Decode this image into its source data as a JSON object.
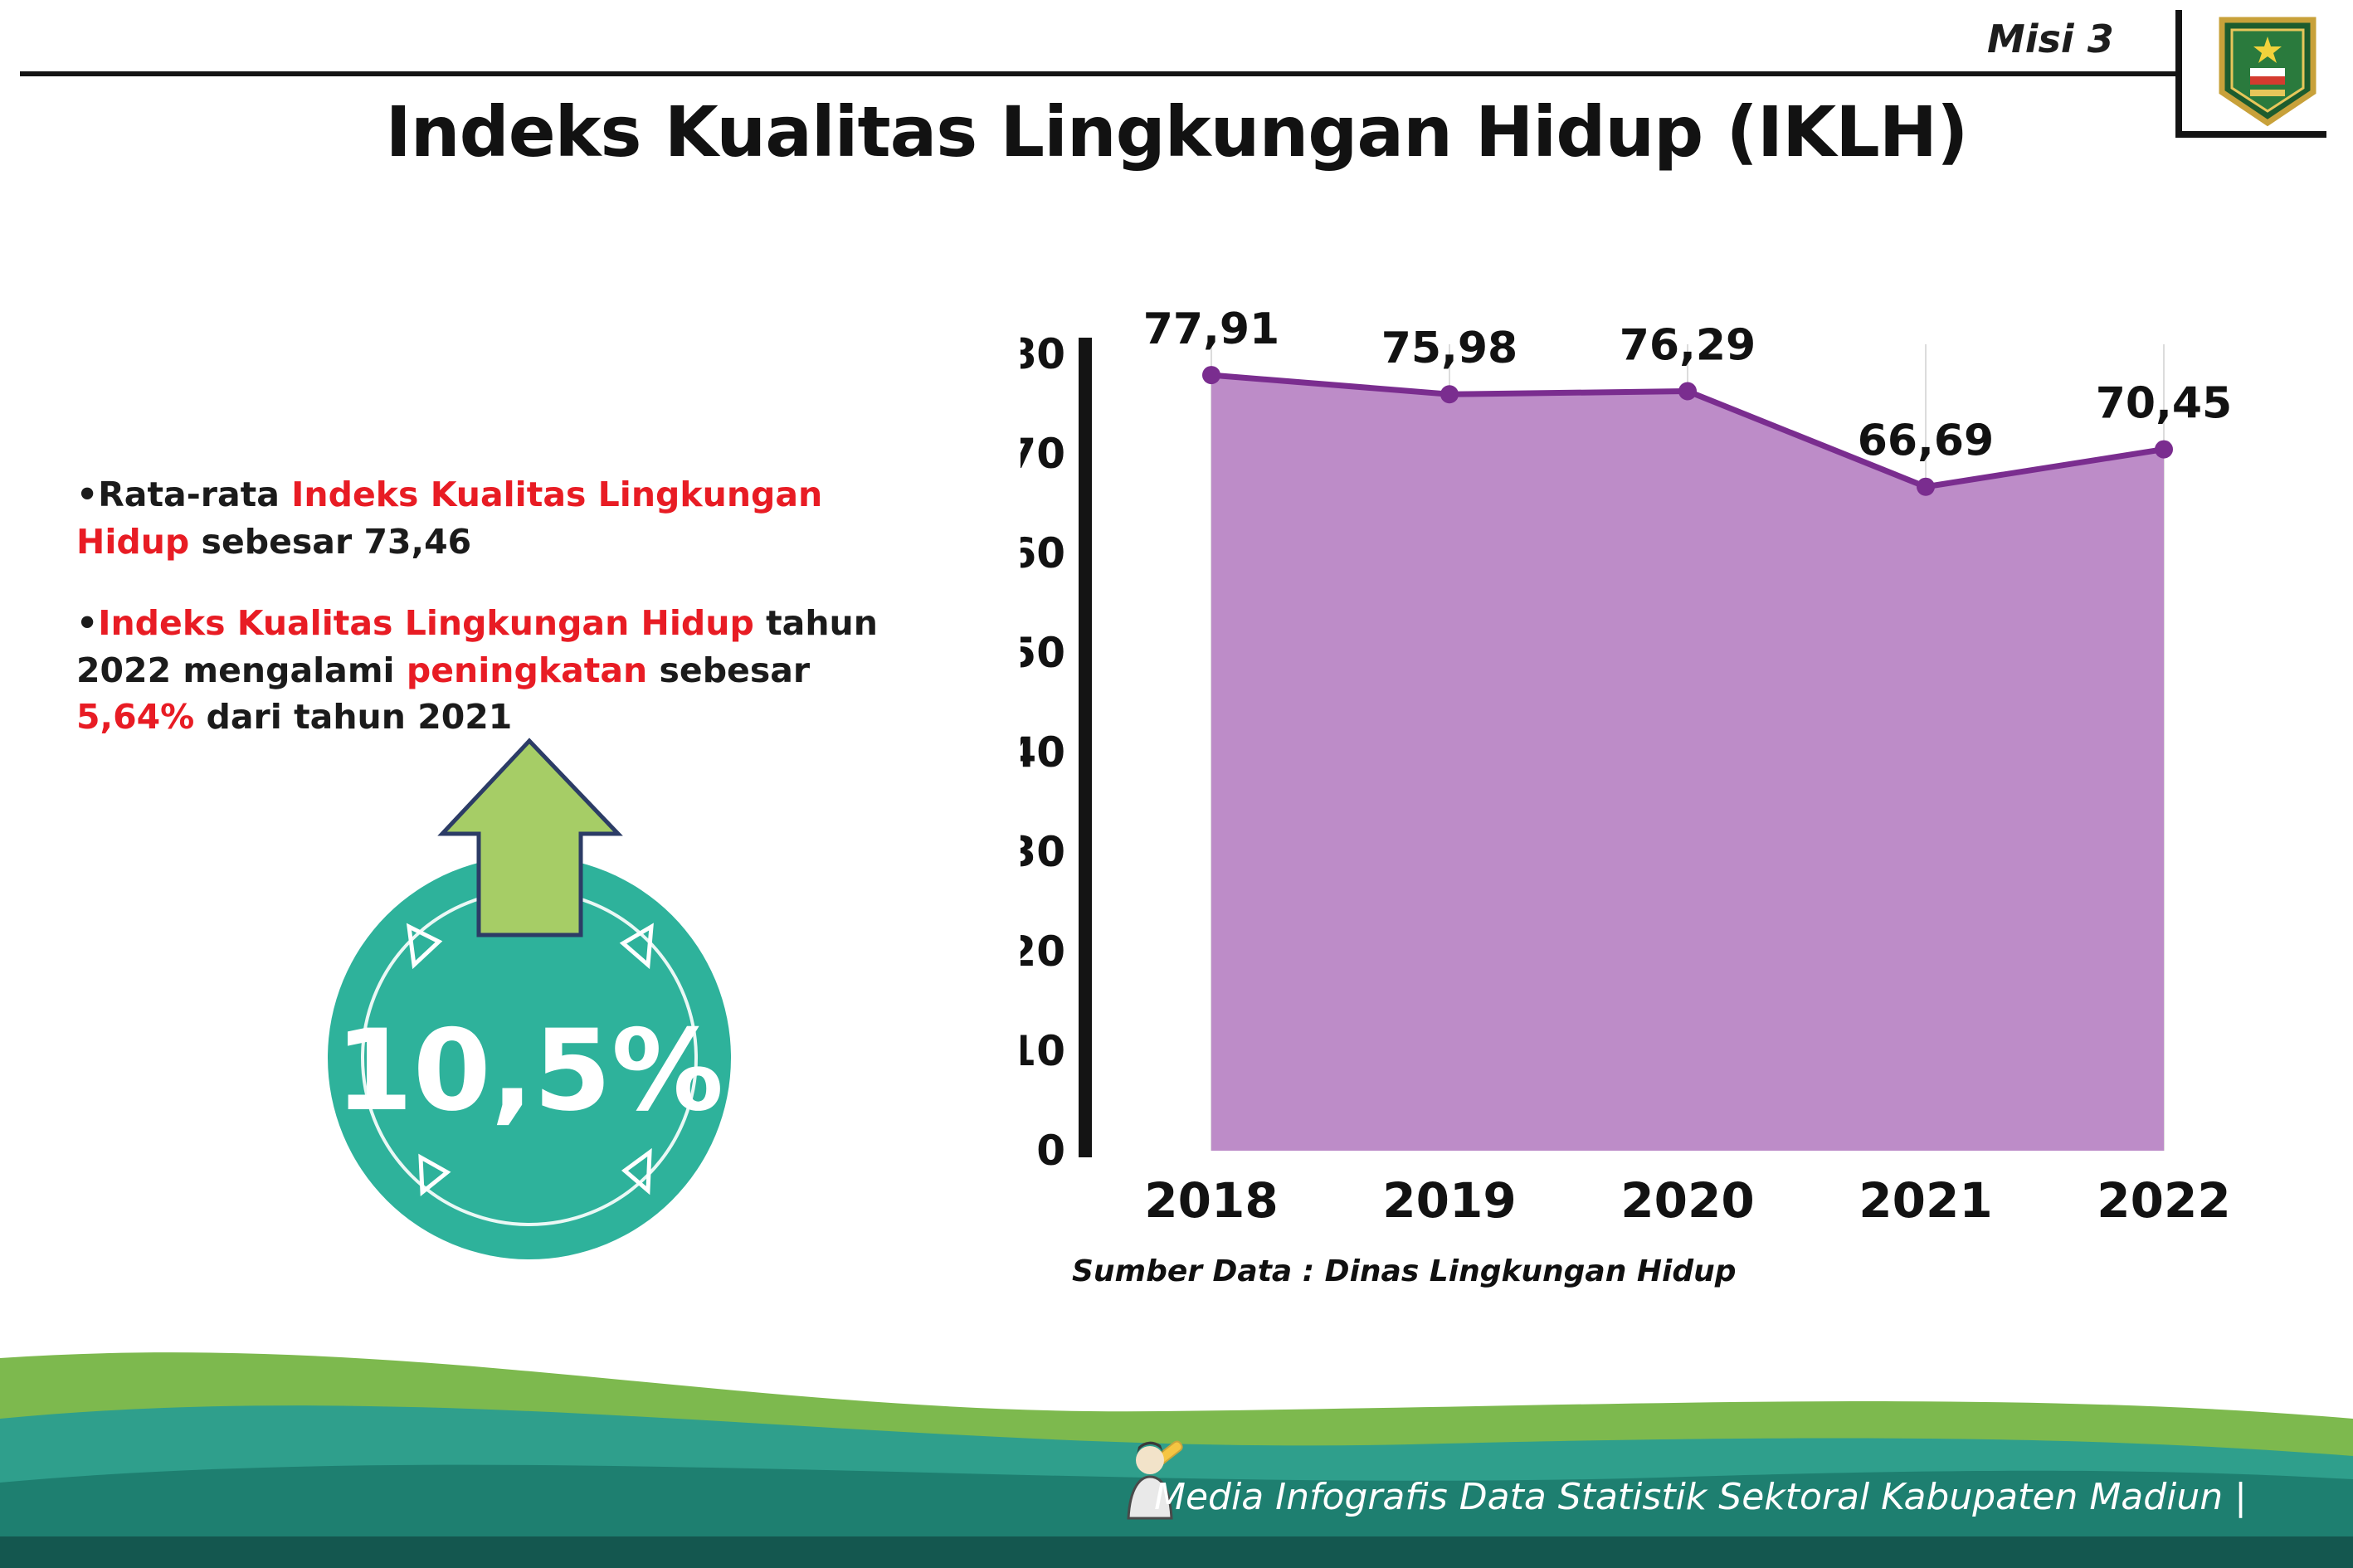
{
  "header": {
    "misi_label": "Misi 3",
    "title": "Indeks Kualitas Lingkungan Hidup (IKLH)",
    "logo": "kabupaten-madiun-crest"
  },
  "bullets": {
    "dot": "•",
    "b1": {
      "seg1": "Rata-rata ",
      "seg2_red": "Indeks Kualitas Lingkungan Hidup",
      "seg3": " sebesar 73,46"
    },
    "b2": {
      "seg1_red": "Indeks Kualitas Lingkungan Hidup",
      "seg2": " tahun 2022 mengalami ",
      "seg3_red": "peningkatan",
      "seg4": " sebesar ",
      "seg5_red": "5,64%",
      "seg6": " dari tahun 2021"
    }
  },
  "badge": {
    "value": "10,5%",
    "circle_color": "#2eb29b",
    "arrow_color": "#a6cd66"
  },
  "chart_data": {
    "type": "area",
    "title": "",
    "categories": [
      "2018",
      "2019",
      "2020",
      "2021",
      "2022"
    ],
    "values": [
      77.91,
      75.98,
      76.29,
      66.69,
      70.45
    ],
    "value_labels": [
      "77,91",
      "75,98",
      "76,29",
      "66,69",
      "70,45"
    ],
    "ylim": [
      0,
      80
    ],
    "ytick_step": 10,
    "grid": "light-vertical",
    "legend": "none",
    "fill_color": "#bd8cc8",
    "line_color": "#7a2d8f",
    "source_label": "Sumber Data : Dinas Lingkungan Hidup"
  },
  "footer": {
    "credit": "Media Infografis Data Statistik Sektoral Kabupaten Madiun |"
  },
  "colors": {
    "accent_red": "#e81c24",
    "teal_badge": "#2eb29b",
    "arrow_green": "#a6cd66",
    "purple_fill": "#bd8cc8",
    "purple_line": "#7a2d8f",
    "footer_green": "#7db94e",
    "footer_teal": "#2f9f8c",
    "footer_dark_teal": "#1e7f70",
    "footer_strip": "#14574f"
  }
}
